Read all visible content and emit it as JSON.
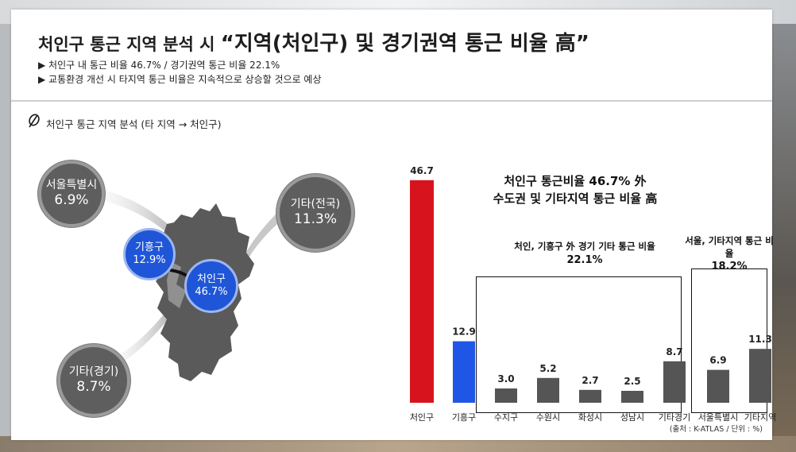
{
  "header": {
    "title_prefix": "처인구 통근 지역 분석 시",
    "title_emphasis": "“지역(처인구) 및 경기권역 통근 비율 高”",
    "bullets": [
      "▶ 처인구 내 통근 비율 46.7% / 경기권역 통근 비율 22.1%",
      "▶ 교통환경 개선 시 타지역 통근 비율은 지속적으로 상승할 것으로 예상"
    ]
  },
  "section_title": "처인구 통근 지역 분석 (타 지역 → 처인구)",
  "map": {
    "bubbles": [
      {
        "name": "서울특별시",
        "value": "6.9%",
        "style": "gray"
      },
      {
        "name": "기타(전국)",
        "value": "11.3%",
        "style": "gray"
      },
      {
        "name": "기흥구",
        "value": "12.9%",
        "style": "blue"
      },
      {
        "name": "처인구",
        "value": "46.7%",
        "style": "blue"
      },
      {
        "name": "기타(경기)",
        "value": "8.7%",
        "style": "gray"
      }
    ]
  },
  "chart_data": {
    "type": "bar",
    "title": "처인구 통근비율 46.7% 外 수도권 및 기타지역 통근 비율 高",
    "title_lines": [
      "처인구 통근비율 46.7% 外",
      "수도권 및 기타지역 통근 비율 高"
    ],
    "categories": [
      "처인구",
      "기흥구",
      "수지구",
      "수원시",
      "화성시",
      "성남시",
      "기타경기",
      "서울특별시",
      "기타지역"
    ],
    "values": [
      46.7,
      12.9,
      3.0,
      5.2,
      2.7,
      2.5,
      8.7,
      6.9,
      11.3
    ],
    "value_labels": [
      "46.7",
      "12.9",
      "3.0",
      "5.2",
      "2.7",
      "2.5",
      "8.7",
      "6.9",
      "11.3"
    ],
    "bar_colors": [
      "#d7141e",
      "#1f56e6",
      "#555555",
      "#555555",
      "#555555",
      "#555555",
      "#555555",
      "#555555",
      "#555555"
    ],
    "ylim": [
      0,
      50
    ],
    "grid": false,
    "groups": [
      {
        "label": "처인, 기흥구 外 경기 기타 통근 비율",
        "value": "22.1%",
        "categories": [
          "수지구",
          "수원시",
          "화성시",
          "성남시",
          "기타경기"
        ]
      },
      {
        "label": "서울, 기타지역 통근 비율",
        "value": "18.2%",
        "categories": [
          "서울특별시",
          "기타지역"
        ]
      }
    ]
  },
  "source": "(출처 : K-ATLAS / 단위 : %)",
  "colors": {
    "accent_red": "#d7141e",
    "accent_blue": "#1f56e6",
    "bar_gray": "#555555",
    "bubble_gray": "#5e5e5e"
  }
}
